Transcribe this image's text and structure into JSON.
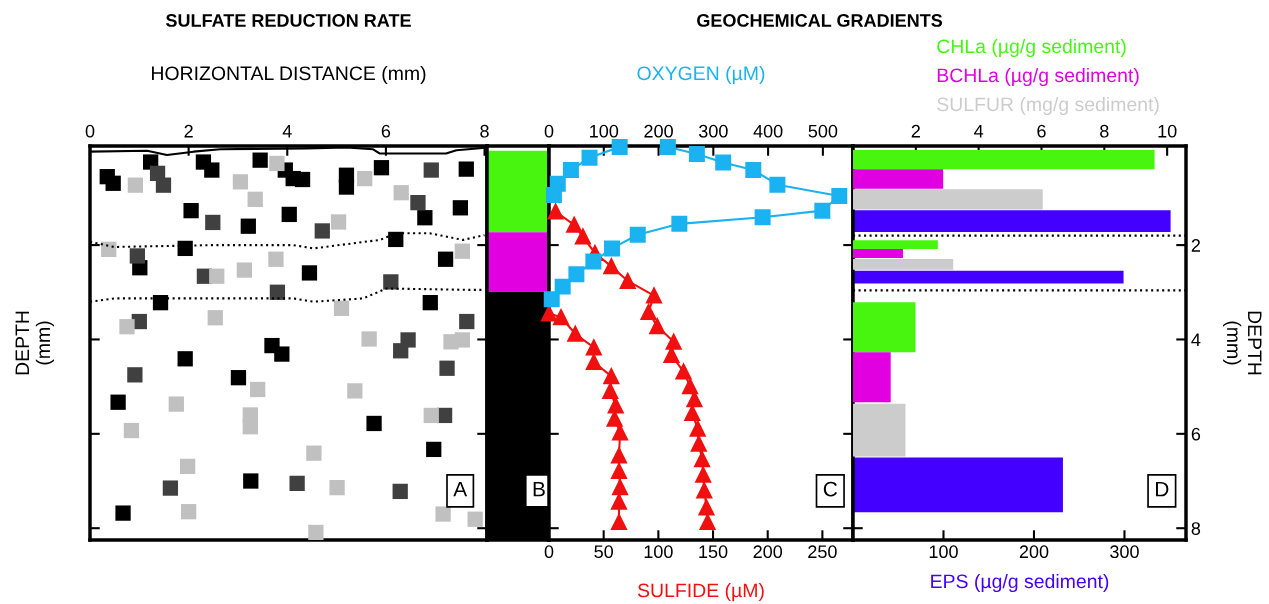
{
  "chart_data": [
    {
      "type": "scatter",
      "title": "SULFATE REDUCTION RATE",
      "xlabel": "HORIZONTAL DISTANCE (mm)",
      "ylabel": "DEPTH\n(mm)",
      "xlim": [
        0,
        8.05
      ],
      "xticks": [
        0,
        2,
        4,
        6,
        8
      ],
      "ylim": [
        8.25,
        -0.1
      ],
      "yticks": [
        {
          "value": 2,
          "label": null
        },
        {
          "value": 4,
          "label": null
        },
        {
          "value": 6,
          "label": null
        },
        {
          "value": 8,
          "label": null
        }
      ],
      "tick_labels": "x",
      "annotations": [
        "A"
      ],
      "series": [
        {
          "type": "scatter",
          "marker": "square",
          "color": "#000000",
          "x": [
            1.23,
            0.35,
            0.47,
            2.3,
            2.47,
            3.45,
            3.96,
            4.12,
            4.31,
            5.2,
            5.2,
            5.91,
            7.63,
            6.79,
            7.51,
            2.05,
            3.21,
            4.04,
            1.93,
            1.01,
            4.45,
            6.2,
            7.21,
            1.43,
            6.9,
            3.69,
            3.89,
            1.93,
            3.01,
            0.57,
            5.76,
            6.97,
            3.26,
            0.67
          ],
          "values": [
            0.24,
            0.55,
            0.69,
            0.24,
            0.41,
            0.2,
            0.41,
            0.59,
            0.61,
            0.52,
            0.77,
            0.36,
            0.39,
            1.42,
            1.21,
            1.27,
            1.6,
            1.35,
            2.07,
            2.48,
            2.59,
            1.88,
            2.3,
            3.22,
            3.22,
            4.13,
            4.31,
            4.41,
            4.81,
            5.33,
            5.78,
            6.33,
            7.0,
            7.68
          ]
        },
        {
          "type": "scatter",
          "marker": "square",
          "color": "#404040",
          "x": [
            1.37,
            1.49,
            6.92,
            6.65,
            2.49,
            4.71,
            0.96,
            2.32,
            6.1,
            3.8,
            1.0,
            7.64,
            6.45,
            6.3,
            7.24,
            0.91,
            7.19,
            1.63,
            4.2,
            6.29
          ],
          "values": [
            0.48,
            0.73,
            0.41,
            1.1,
            1.52,
            1.7,
            2.23,
            2.66,
            2.78,
            3.0,
            3.62,
            3.62,
            4.01,
            4.24,
            4.61,
            4.75,
            5.61,
            7.15,
            7.05,
            7.22
          ]
        },
        {
          "type": "scatter",
          "marker": "square",
          "color": "#c0c0c0",
          "x": [
            0.92,
            3.79,
            3.05,
            3.35,
            5.57,
            6.31,
            5.04,
            0.38,
            2.57,
            3.13,
            3.77,
            7.55,
            5.1,
            0.75,
            2.54,
            7.55,
            7.32,
            5.66,
            3.4,
            5.37,
            1.75,
            3.25,
            3.25,
            6.92,
            0.84,
            4.54,
            1.98,
            5.01,
            2.0,
            7.16,
            7.81,
            4.58
          ],
          "values": [
            0.73,
            0.27,
            0.66,
            1.03,
            0.59,
            0.89,
            1.51,
            2.09,
            2.66,
            2.53,
            2.3,
            2.13,
            3.34,
            3.73,
            3.54,
            4.01,
            4.05,
            3.99,
            5.06,
            5.09,
            5.37,
            5.6,
            5.85,
            5.61,
            5.93,
            6.41,
            6.69,
            7.14,
            7.65,
            7.7,
            7.81,
            8.09
          ]
        },
        {
          "type": "line",
          "color": "#000000",
          "line_style": "solid",
          "x": [
            0,
            1.16,
            1.56,
            2.1,
            2.64,
            4.39,
            5.2,
            5.74,
            5.88,
            7.22,
            7.43,
            8.0
          ],
          "values": [
            0.02,
            0.0,
            0.09,
            0.02,
            -0.03,
            -0.05,
            -0.07,
            -0.03,
            0.06,
            0.06,
            -0.01,
            -0.06
          ]
        },
        {
          "type": "line",
          "color": "#000000",
          "line_style": "dotted",
          "x": [
            0,
            0.49,
            2.51,
            4.12,
            4.53,
            5.88,
            6.21,
            6.89,
            7.56,
            8.0
          ],
          "values": [
            1.93,
            2.04,
            2.0,
            2.0,
            2.07,
            1.89,
            1.75,
            1.75,
            1.89,
            1.79
          ]
        },
        {
          "type": "line",
          "color": "#000000",
          "line_style": "dotted",
          "x": [
            0,
            0.49,
            4.12,
            4.53,
            5.54,
            6.01,
            7.76,
            8.0
          ],
          "values": [
            3.2,
            3.13,
            3.13,
            3.2,
            3.13,
            2.92,
            2.95,
            2.95
          ]
        }
      ]
    },
    {
      "type": "bar",
      "stacked": true,
      "categories": [
        null
      ],
      "ylim": [
        8.25,
        -0.1
      ],
      "tick_labels": false,
      "annotations": [
        "B"
      ],
      "series": [
        {
          "color": "#47f50f",
          "values": [
            1.73
          ]
        },
        {
          "color": "#e000e0",
          "values": [
            1.26
          ]
        },
        {
          "color": "#000000",
          "values": [
            5.26
          ]
        }
      ]
    },
    {
      "type": "line",
      "orientation": "horizontal",
      "title": "GEOCHEMICAL GRADIENTS",
      "xlabel": "SULFIDE (µM)",
      "x2label": "OXYGEN (µM)",
      "xlim": [
        0,
        278
      ],
      "xticks": [
        0,
        50,
        100,
        150,
        200,
        250
      ],
      "x2lim": [
        0,
        555
      ],
      "x2ticks": [
        0,
        100,
        200,
        300,
        400,
        500
      ],
      "ylim": [
        8.25,
        -0.1
      ],
      "yticks": [
        {
          "value": 2,
          "label": null
        },
        {
          "value": 4,
          "label": null
        },
        {
          "value": 6,
          "label": null
        },
        {
          "value": 8,
          "label": null
        }
      ],
      "tick_labels": "x",
      "annotations": [
        "C"
      ],
      "series": [
        {
          "axis": "x2",
          "color": "#1ab2f0",
          "marker": "square",
          "x": [
            -0.08,
            0.15,
            0.41,
            0.7,
            0.94
          ],
          "values": [
            129,
            74,
            40,
            16,
            9
          ]
        },
        {
          "axis": "x2",
          "color": "#1ab2f0",
          "marker": "square",
          "x": [
            -0.08,
            0.07,
            0.25,
            0.41,
            0.72,
            0.96,
            1.27,
            1.41,
            1.55,
            1.78,
            2.07,
            2.35,
            2.62,
            2.88,
            3.15
          ],
          "values": [
            217,
            270,
            318,
            373,
            417,
            530,
            499,
            390,
            238,
            162,
            115,
            81,
            50,
            25,
            5
          ]
        },
        {
          "color": "#f01010",
          "marker": "triangle",
          "x": [
            1.29,
            1.57,
            1.82,
            2.17,
            2.45,
            2.76,
            3.07,
            3.42,
            3.72,
            4.05,
            4.33,
            4.68,
            4.99,
            5.27,
            5.56,
            5.89,
            6.21,
            6.54,
            6.87,
            7.2,
            7.56,
            7.87
          ],
          "values": [
            6,
            23,
            31,
            42,
            57,
            72,
            96,
            91,
            99,
            114,
            112,
            123,
            129,
            133,
            131,
            136,
            137,
            140,
            141,
            142,
            144,
            145
          ]
        },
        {
          "color": "#f01010",
          "marker": "triangle",
          "x": [
            3.45,
            3.53,
            3.88,
            4.17,
            4.48,
            4.78,
            5.09,
            5.4,
            5.68,
            5.97,
            6.46,
            6.79,
            7.13,
            7.44,
            7.87
          ],
          "values": [
            0,
            11,
            24,
            41,
            41,
            57,
            56,
            61,
            60,
            65,
            64,
            64,
            65,
            64,
            64
          ]
        }
      ]
    },
    {
      "type": "bar",
      "orientation": "horizontal",
      "ylabel": "DEPTH\n(mm)",
      "xlim": [
        0,
        368
      ],
      "xticks": [
        100,
        200,
        300
      ],
      "x2lim": [
        0,
        10.6
      ],
      "x2ticks": [
        2,
        4,
        6,
        8,
        10
      ],
      "ylim": [
        8.25,
        -0.1
      ],
      "yticks": [
        2,
        4,
        6,
        8
      ],
      "annotations": [
        "D"
      ],
      "ref_lines": [
        {
          "axis": "y",
          "value": 1.8,
          "color": "#000000",
          "line_style": "dotted"
        },
        {
          "axis": "y",
          "value": 2.96,
          "color": "#000000",
          "line_style": "dotted"
        }
      ],
      "series": [
        {
          "name": "CHLa (µg/g sediment)",
          "axis": "x2",
          "color": "#47f50f",
          "x": [
            0.19,
            1.99,
            3.74
          ],
          "values": [
            9.6,
            2.7,
            1.99
          ]
        },
        {
          "name": "BCHLa (µg/g sediment)",
          "axis": "x2",
          "color": "#e000e0",
          "x": [
            0.6,
            2.18,
            4.8
          ],
          "values": [
            2.87,
            1.59,
            1.2
          ]
        },
        {
          "name": "SULFUR (mg/g sediment)",
          "axis": "x2",
          "color": "#cccccc",
          "x": [
            1.03,
            2.41,
            5.92
          ],
          "values": [
            6.04,
            3.19,
            1.67
          ]
        },
        {
          "name": "EPS (µg/g sediment)",
          "color": "#4400ff",
          "x": [
            1.49,
            2.68,
            7.08
          ],
          "values": [
            351,
            299,
            232
          ]
        }
      ]
    }
  ]
}
